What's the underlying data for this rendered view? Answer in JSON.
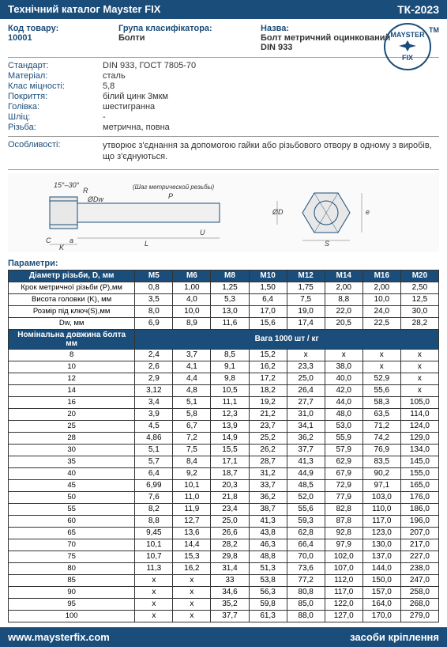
{
  "header": {
    "title": "Технічний каталог Mayster FIX",
    "code": "ТК-2023"
  },
  "top": {
    "code_label": "Код товару:",
    "code_value": "10001",
    "group_label": "Група класифікатора:",
    "group_value": "Болти",
    "name_label": "Назва:",
    "name_value1": "Болт метричний оцинкований",
    "name_value2": "DIN 933"
  },
  "logo": {
    "line1": "MAYSTER",
    "line2": "FIX",
    "tm": "ТМ"
  },
  "specs": [
    {
      "label": "Стандарт:",
      "value": "DIN 933, ГОСТ 7805-70"
    },
    {
      "label": "Матеріал:",
      "value": "сталь"
    },
    {
      "label": "Клас міцності:",
      "value": "5,8"
    },
    {
      "label": "Покриття:",
      "value": "білий цинк 3мкм"
    },
    {
      "label": "Голівка:",
      "value": "шестигранна"
    },
    {
      "label": "Шліц:",
      "value": "-"
    },
    {
      "label": "Різьба:",
      "value": "метрична, повна"
    }
  ],
  "feature": {
    "label": "Особливості:",
    "value": "утворює з'єднання за допомогою гайки або різьбового отвору в одному з виробів, що з'єднуються."
  },
  "diagram_labels": {
    "angle": "15°–30°",
    "R": "R",
    "Dw": "ØDw",
    "C": "C",
    "a": "a",
    "thread": "(Шаг метрической резьбы)",
    "P": "P",
    "U": "U",
    "L": "L",
    "D": "ØD",
    "S": "S",
    "K": "K",
    "e": "e"
  },
  "params_label": "Параметри:",
  "table": {
    "head": [
      "Діаметр різьби, D, мм",
      "M5",
      "M6",
      "M8",
      "M10",
      "M12",
      "M14",
      "M16",
      "M20"
    ],
    "spec_rows": [
      {
        "label": "Крок метричної різьби (Р),мм",
        "v": [
          "0,8",
          "1,00",
          "1,25",
          "1,50",
          "1,75",
          "2,00",
          "2,00",
          "2,50"
        ]
      },
      {
        "label": "Висота головки (K), мм",
        "v": [
          "3,5",
          "4,0",
          "5,3",
          "6,4",
          "7,5",
          "8,8",
          "10,0",
          "12,5"
        ]
      },
      {
        "label": "Розмір під ключ(S),мм",
        "v": [
          "8,0",
          "10,0",
          "13,0",
          "17,0",
          "19,0",
          "22,0",
          "24,0",
          "30,0"
        ]
      },
      {
        "label": "Dw, мм",
        "v": [
          "6,9",
          "8,9",
          "11,6",
          "15,6",
          "17,4",
          "20,5",
          "22,5",
          "28,2"
        ]
      }
    ],
    "weight_header": {
      "left": "Номінальна довжина болта мм",
      "right": "Вага 1000 шт / кг"
    },
    "data_rows": [
      {
        "l": "8",
        "v": [
          "2,4",
          "3,7",
          "8,5",
          "15,2",
          "x",
          "x",
          "x",
          "x"
        ]
      },
      {
        "l": "10",
        "v": [
          "2,6",
          "4,1",
          "9,1",
          "16,2",
          "23,3",
          "38,0",
          "x",
          "x"
        ]
      },
      {
        "l": "12",
        "v": [
          "2,9",
          "4,4",
          "9,8",
          "17,2",
          "25,0",
          "40,0",
          "52,9",
          "x"
        ]
      },
      {
        "l": "14",
        "v": [
          "3,12",
          "4,8",
          "10,5",
          "18,2",
          "26,4",
          "42,0",
          "55,6",
          "x"
        ]
      },
      {
        "l": "16",
        "v": [
          "3,4",
          "5,1",
          "11,1",
          "19,2",
          "27,7",
          "44,0",
          "58,3",
          "105,0"
        ]
      },
      {
        "l": "20",
        "v": [
          "3,9",
          "5,8",
          "12,3",
          "21,2",
          "31,0",
          "48,0",
          "63,5",
          "114,0"
        ]
      },
      {
        "l": "25",
        "v": [
          "4,5",
          "6,7",
          "13,9",
          "23,7",
          "34,1",
          "53,0",
          "71,2",
          "124,0"
        ]
      },
      {
        "l": "28",
        "v": [
          "4,86",
          "7,2",
          "14,9",
          "25,2",
          "36,2",
          "55,9",
          "74,2",
          "129,0"
        ]
      },
      {
        "l": "30",
        "v": [
          "5,1",
          "7,5",
          "15,5",
          "26,2",
          "37,7",
          "57,9",
          "76,9",
          "134,0"
        ]
      },
      {
        "l": "35",
        "v": [
          "5,7",
          "8,4",
          "17,1",
          "28,7",
          "41,3",
          "62,9",
          "83,5",
          "145,0"
        ]
      },
      {
        "l": "40",
        "v": [
          "6,4",
          "9,2",
          "18,7",
          "31,2",
          "44,9",
          "67,9",
          "90,2",
          "155,0"
        ]
      },
      {
        "l": "45",
        "v": [
          "6,99",
          "10,1",
          "20,3",
          "33,7",
          "48,5",
          "72,9",
          "97,1",
          "165,0"
        ]
      },
      {
        "l": "50",
        "v": [
          "7,6",
          "11,0",
          "21,8",
          "36,2",
          "52,0",
          "77,9",
          "103,0",
          "176,0"
        ]
      },
      {
        "l": "55",
        "v": [
          "8,2",
          "11,9",
          "23,4",
          "38,7",
          "55,6",
          "82,8",
          "110,0",
          "186,0"
        ]
      },
      {
        "l": "60",
        "v": [
          "8,8",
          "12,7",
          "25,0",
          "41,3",
          "59,3",
          "87,8",
          "117,0",
          "196,0"
        ]
      },
      {
        "l": "65",
        "v": [
          "9,45",
          "13,6",
          "26,6",
          "43,8",
          "62,8",
          "92,8",
          "123,0",
          "207,0"
        ]
      },
      {
        "l": "70",
        "v": [
          "10,1",
          "14,4",
          "28,2",
          "46,3",
          "66,4",
          "97,9",
          "130,0",
          "217,0"
        ]
      },
      {
        "l": "75",
        "v": [
          "10,7",
          "15,3",
          "29,8",
          "48,8",
          "70,0",
          "102,0",
          "137,0",
          "227,0"
        ]
      },
      {
        "l": "80",
        "v": [
          "11,3",
          "16,2",
          "31,4",
          "51,3",
          "73,6",
          "107,0",
          "144,0",
          "238,0"
        ]
      },
      {
        "l": "85",
        "v": [
          "x",
          "x",
          "33",
          "53,8",
          "77,2",
          "112,0",
          "150,0",
          "247,0"
        ]
      },
      {
        "l": "90",
        "v": [
          "x",
          "x",
          "34,6",
          "56,3",
          "80,8",
          "117,0",
          "157,0",
          "258,0"
        ]
      },
      {
        "l": "95",
        "v": [
          "x",
          "x",
          "35,2",
          "59,8",
          "85,0",
          "122,0",
          "164,0",
          "268,0"
        ]
      },
      {
        "l": "100",
        "v": [
          "x",
          "x",
          "37,7",
          "61,3",
          "88,0",
          "127,0",
          "170,0",
          "279,0"
        ]
      }
    ]
  },
  "footer": {
    "url": "www.maysterfix.com",
    "text": "засоби кріплення"
  }
}
